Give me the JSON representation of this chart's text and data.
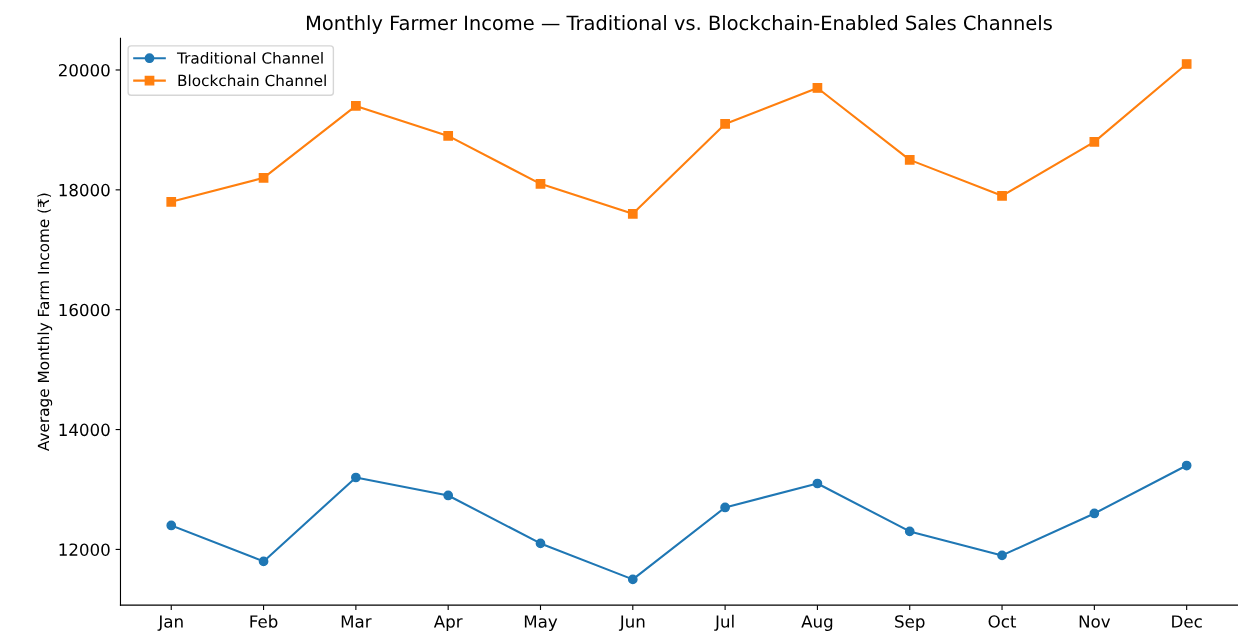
{
  "chart_data": {
    "type": "line",
    "title": "Monthly Farmer Income — Traditional vs. Blockchain-Enabled Sales Channels",
    "ylabel": "Average Monthly Farm Income (₹)",
    "categories": [
      "Jan",
      "Feb",
      "Mar",
      "Apr",
      "May",
      "Jun",
      "Jul",
      "Aug",
      "Sep",
      "Oct",
      "Nov",
      "Dec"
    ],
    "series": [
      {
        "name": "Traditional Channel",
        "color": "#1f77b4",
        "marker": "circle",
        "values": [
          12400,
          11800,
          13200,
          12900,
          12100,
          11500,
          12700,
          13100,
          12300,
          11900,
          12600,
          13400
        ]
      },
      {
        "name": "Blockchain Channel",
        "color": "#ff7f0e",
        "marker": "square",
        "values": [
          17800,
          18200,
          19400,
          18900,
          18100,
          17600,
          19100,
          19700,
          18500,
          17900,
          18800,
          20100
        ]
      }
    ],
    "ylim": [
      11070,
      20530
    ],
    "yticks": [
      12000,
      14000,
      16000,
      18000,
      20000
    ],
    "legend": "top left",
    "grid": false,
    "line_style": "solid"
  }
}
